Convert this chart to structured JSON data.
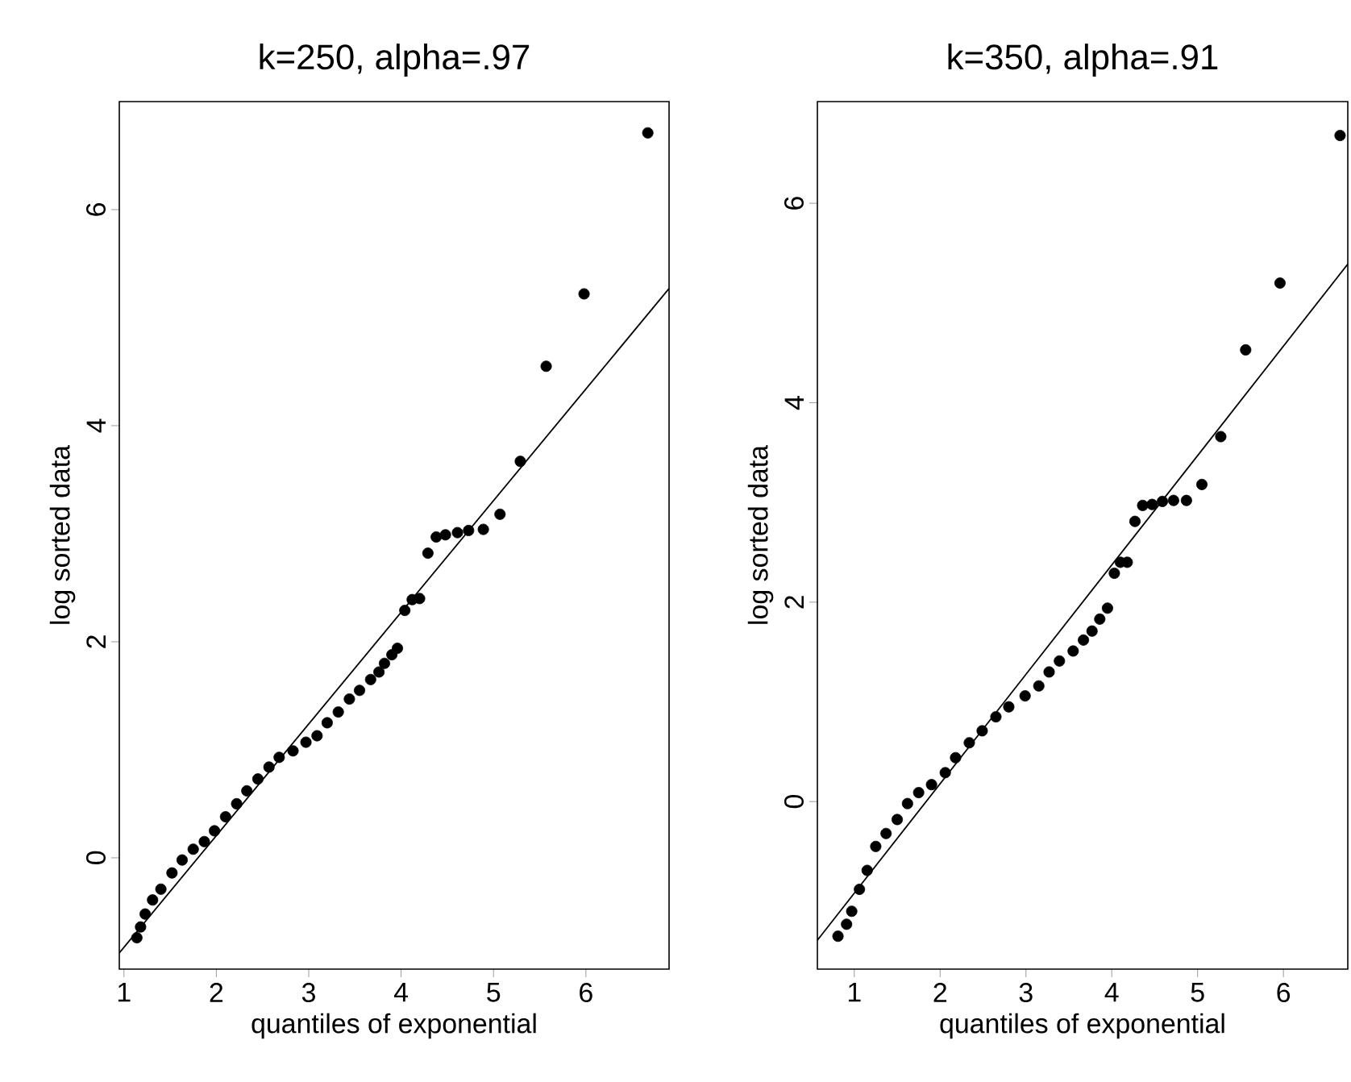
{
  "chart_data": [
    {
      "type": "scatter",
      "title": "k=250, alpha=.97",
      "xlabel": "quantiles of exponential",
      "ylabel": "log sorted data",
      "xlim": [
        0.95,
        6.9
      ],
      "ylim": [
        -1.03,
        7.0
      ],
      "xticks": [
        1,
        2,
        3,
        4,
        5,
        6
      ],
      "yticks": [
        0,
        2,
        4,
        6
      ],
      "series": [
        {
          "marker": "circle",
          "color": "#000000",
          "x": [
            1.14,
            1.18,
            1.23,
            1.31,
            1.4,
            1.52,
            1.63,
            1.75,
            1.87,
            1.98,
            2.1,
            2.22,
            2.33,
            2.45,
            2.57,
            2.68,
            2.83,
            2.97,
            3.09,
            3.2,
            3.32,
            3.44,
            3.55,
            3.67,
            3.76,
            3.82,
            3.9,
            3.96,
            4.04,
            4.12,
            4.2,
            4.29,
            4.38,
            4.48,
            4.61,
            4.73,
            4.89,
            5.07,
            5.29,
            5.57,
            5.98,
            6.67
          ],
          "values": [
            -0.74,
            -0.64,
            -0.52,
            -0.39,
            -0.29,
            -0.14,
            -0.02,
            0.08,
            0.15,
            0.25,
            0.38,
            0.5,
            0.62,
            0.73,
            0.84,
            0.93,
            0.99,
            1.07,
            1.13,
            1.25,
            1.35,
            1.47,
            1.55,
            1.65,
            1.72,
            1.8,
            1.88,
            1.94,
            2.29,
            2.39,
            2.4,
            2.82,
            2.97,
            2.99,
            3.01,
            3.03,
            3.04,
            3.18,
            3.67,
            4.55,
            5.22,
            6.71
          ]
        },
        {
          "type": "line",
          "marker": "none",
          "color": "#000000",
          "x": [
            0.95,
            6.9
          ],
          "values": [
            -0.88,
            5.27
          ]
        }
      ]
    },
    {
      "type": "scatter",
      "title": "k=350, alpha=.91",
      "xlabel": "quantiles of exponential",
      "ylabel": "log sorted data",
      "xlim": [
        0.57,
        6.75
      ],
      "ylim": [
        -1.68,
        7.02
      ],
      "xticks": [
        1,
        2,
        3,
        4,
        5,
        6
      ],
      "yticks": [
        0,
        2,
        4,
        6
      ],
      "series": [
        {
          "marker": "circle",
          "color": "#000000",
          "x": [
            0.81,
            0.91,
            0.97,
            1.06,
            1.15,
            1.25,
            1.37,
            1.5,
            1.62,
            1.75,
            1.9,
            2.06,
            2.18,
            2.34,
            2.49,
            2.65,
            2.8,
            2.99,
            3.15,
            3.27,
            3.39,
            3.55,
            3.67,
            3.77,
            3.86,
            3.95,
            4.03,
            4.1,
            4.18,
            4.27,
            4.36,
            4.47,
            4.59,
            4.72,
            4.87,
            5.05,
            5.27,
            5.56,
            5.96,
            6.66
          ],
          "values": [
            -1.35,
            -1.23,
            -1.1,
            -0.88,
            -0.69,
            -0.45,
            -0.32,
            -0.18,
            -0.02,
            0.09,
            0.17,
            0.29,
            0.44,
            0.59,
            0.71,
            0.85,
            0.95,
            1.06,
            1.16,
            1.3,
            1.41,
            1.51,
            1.62,
            1.71,
            1.83,
            1.94,
            2.29,
            2.4,
            2.4,
            2.81,
            2.97,
            2.98,
            3.01,
            3.02,
            3.02,
            3.18,
            3.66,
            4.53,
            5.2,
            6.68
          ]
        },
        {
          "type": "line",
          "marker": "none",
          "color": "#000000",
          "x": [
            0.57,
            6.75
          ],
          "values": [
            -1.39,
            5.39
          ]
        }
      ]
    }
  ]
}
